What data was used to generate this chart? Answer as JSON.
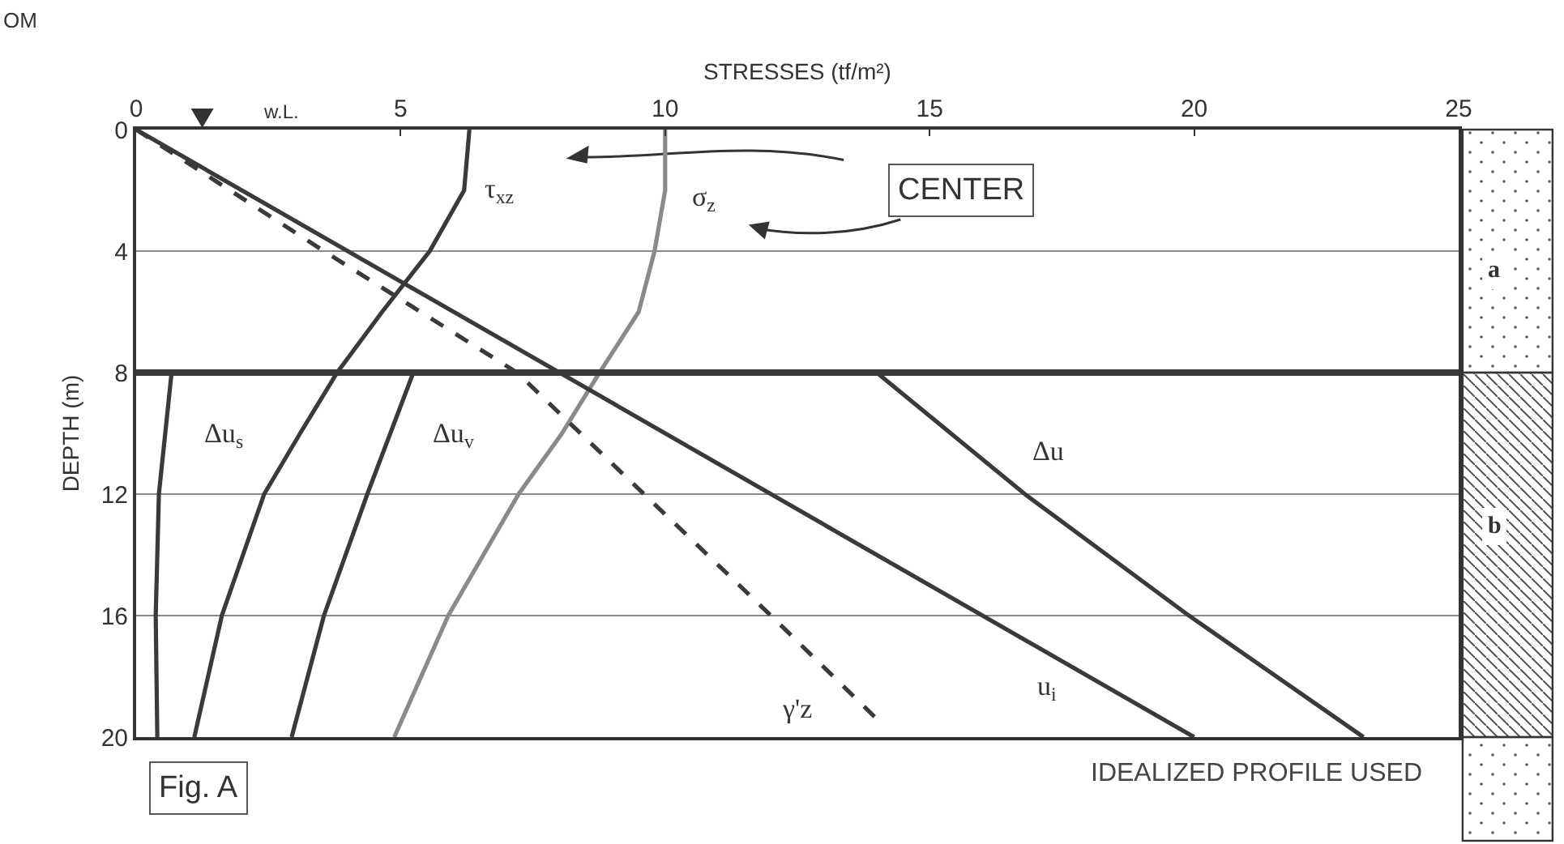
{
  "chart_data": {
    "type": "line",
    "xlabel": "STRESSES (tf/m²)",
    "ylabel": "DEPTH (m)",
    "xlim": [
      0,
      25
    ],
    "xticks": [
      0,
      5,
      10,
      15,
      20,
      25
    ],
    "ylim": [
      20,
      0
    ],
    "yticks": [
      0,
      4,
      8,
      12,
      16,
      20
    ],
    "grid": "y",
    "legend": false,
    "marker": "none",
    "line_style": "solid",
    "series": [
      {
        "name": "τ$_{xz}$",
        "color": "#3a3a3a",
        "x": [
          6.3,
          6.2,
          5.55,
          5.1,
          4.65,
          3.8,
          3.1,
          2.42,
          1.62,
          1.1
        ],
        "values": [
          0,
          2,
          4,
          5,
          6,
          8,
          10,
          12,
          16,
          20
        ]
      },
      {
        "name": "σ$_{z}$",
        "color": "#8a8a8a",
        "x": [
          10,
          10,
          9.8,
          9.5,
          8.76,
          8.05,
          7.23,
          5.9,
          4.88
        ],
        "values": [
          0,
          2,
          4,
          6,
          8,
          10,
          12,
          16,
          20
        ]
      },
      {
        "name": "Δu$_{s}$",
        "color": "#3a3a3a",
        "x": [
          0.67,
          0.43,
          0.37,
          0.4
        ],
        "values": [
          8,
          12,
          16,
          20
        ]
      },
      {
        "name": "Δu$_{v}$",
        "color": "#3a3a3a",
        "x": [
          5.24,
          4.37,
          3.55,
          2.94
        ],
        "values": [
          8,
          12,
          16,
          20
        ]
      },
      {
        "name": "Δu",
        "color": "#3a3a3a",
        "x": [
          14.0,
          16.8,
          19.9,
          23.2
        ],
        "values": [
          8,
          12,
          16,
          20
        ]
      },
      {
        "name": "u$_{i}$",
        "color": "#3a3a3a",
        "x": [
          0,
          20
        ],
        "values": [
          0,
          20
        ]
      },
      {
        "name": "γ'z",
        "color": "#3a3a3a",
        "line_style": "dashed",
        "x": [
          0,
          3.55,
          7.2,
          9.6,
          12.0,
          14.0
        ],
        "values": [
          0,
          4,
          8,
          12,
          16,
          19.4
        ]
      }
    ],
    "ref_lines": [
      {
        "axis": "y",
        "value": 8,
        "color": "#3a3a3a"
      }
    ],
    "annotations": [
      "CENTER",
      "w.L.",
      "OM",
      "Fig. A",
      "IDEALIZED PROFILE USED",
      "a",
      "b"
    ]
  }
}
